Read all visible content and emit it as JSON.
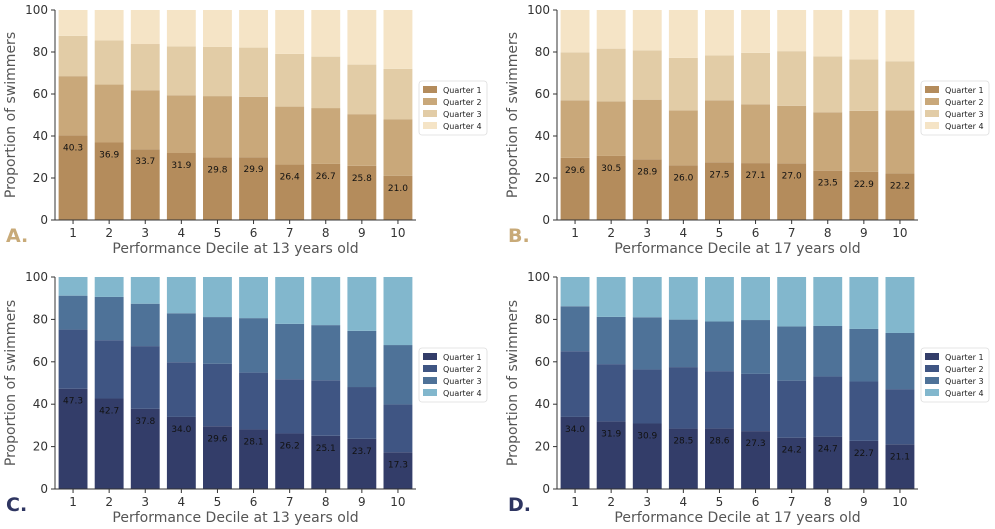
{
  "figure": {
    "colors": {
      "tan": [
        "#b48c5c",
        "#c9a87a",
        "#e2cca6",
        "#f5e4c6"
      ],
      "blue": [
        "#333d69",
        "#3f5583",
        "#4e7298",
        "#82b7cd"
      ],
      "axis": "#333333",
      "tick_text": "#333333",
      "label_text": "#555555",
      "tag_tan": "#c8aa78",
      "tag_blue": "#2e3561"
    }
  },
  "chart_data": [
    {
      "type": "bar",
      "stacked": true,
      "panel": "A.",
      "palette": "tan",
      "title": "",
      "xlabel": "Performance Decile at 13 years old",
      "ylabel": "Proportion of swimmers",
      "ylim": [
        0,
        100
      ],
      "yticks": [
        "0",
        "20",
        "40",
        "60",
        "80",
        "100"
      ],
      "categories": [
        "1",
        "2",
        "3",
        "4",
        "5",
        "6",
        "7",
        "8",
        "9",
        "10"
      ],
      "legend_position": "center-right",
      "series": [
        {
          "name": "Quarter 1",
          "values": [
            40.3,
            36.9,
            33.7,
            31.9,
            29.8,
            29.9,
            26.4,
            26.7,
            25.8,
            21.0
          ]
        },
        {
          "name": "Quarter 2",
          "values": [
            28.2,
            27.6,
            28.1,
            27.5,
            29.2,
            28.8,
            27.6,
            26.6,
            24.6,
            27.0
          ]
        },
        {
          "name": "Quarter 3",
          "values": [
            19.2,
            21.0,
            22.0,
            23.3,
            23.4,
            23.4,
            25.1,
            24.5,
            23.6,
            24.0
          ]
        },
        {
          "name": "Quarter 4",
          "values": [
            12.3,
            14.5,
            16.2,
            17.3,
            17.6,
            17.9,
            20.9,
            22.2,
            26.0,
            28.0
          ]
        }
      ],
      "data_labels": [
        "40.3",
        "36.9",
        "33.7",
        "31.9",
        "29.8",
        "29.9",
        "26.4",
        "26.7",
        "25.8",
        "21.0"
      ]
    },
    {
      "type": "bar",
      "stacked": true,
      "panel": "B.",
      "palette": "tan",
      "title": "",
      "xlabel": "Performance Decile at 17 years old",
      "ylabel": "Proportion of swimmers",
      "ylim": [
        0,
        100
      ],
      "yticks": [
        "0",
        "20",
        "40",
        "60",
        "80",
        "100"
      ],
      "categories": [
        "1",
        "2",
        "3",
        "4",
        "5",
        "6",
        "7",
        "8",
        "9",
        "10"
      ],
      "legend_position": "center-right",
      "series": [
        {
          "name": "Quarter 1",
          "values": [
            29.6,
            30.5,
            28.9,
            26.0,
            27.5,
            27.1,
            27.0,
            23.5,
            22.9,
            22.2
          ]
        },
        {
          "name": "Quarter 2",
          "values": [
            27.4,
            26.0,
            28.4,
            26.2,
            29.5,
            28.0,
            27.4,
            27.8,
            29.1,
            30.0
          ]
        },
        {
          "name": "Quarter 3",
          "values": [
            22.8,
            25.1,
            23.5,
            25.0,
            21.4,
            24.5,
            26.0,
            26.6,
            24.5,
            23.4
          ]
        },
        {
          "name": "Quarter 4",
          "values": [
            20.2,
            18.4,
            19.2,
            22.8,
            21.6,
            20.4,
            19.6,
            22.1,
            23.5,
            24.4
          ]
        }
      ],
      "data_labels": [
        "29.6",
        "30.5",
        "28.9",
        "26.0",
        "27.5",
        "27.1",
        "27.0",
        "23.5",
        "22.9",
        "22.2"
      ]
    },
    {
      "type": "bar",
      "stacked": true,
      "panel": "C.",
      "palette": "blue",
      "title": "",
      "xlabel": "Performance Decile at 13 years old",
      "ylabel": "Proportion of swimmers",
      "ylim": [
        0,
        100
      ],
      "yticks": [
        "0",
        "20",
        "40",
        "60",
        "80",
        "100"
      ],
      "categories": [
        "1",
        "2",
        "3",
        "4",
        "5",
        "6",
        "7",
        "8",
        "9",
        "10"
      ],
      "legend_position": "center-right",
      "series": [
        {
          "name": "Quarter 1",
          "values": [
            47.3,
            42.7,
            37.8,
            34.0,
            29.6,
            28.1,
            26.2,
            25.1,
            23.7,
            17.3
          ]
        },
        {
          "name": "Quarter 2",
          "values": [
            27.9,
            27.5,
            29.6,
            25.8,
            29.5,
            26.8,
            25.6,
            26.2,
            24.4,
            22.6
          ]
        },
        {
          "name": "Quarter 3",
          "values": [
            16.0,
            20.4,
            20.0,
            23.1,
            22.0,
            25.7,
            26.1,
            26.0,
            26.5,
            28.0
          ]
        },
        {
          "name": "Quarter 4",
          "values": [
            8.8,
            9.4,
            12.6,
            17.1,
            18.9,
            19.4,
            22.1,
            22.7,
            25.4,
            32.1
          ]
        }
      ],
      "data_labels": [
        "47.3",
        "42.7",
        "37.8",
        "34.0",
        "29.6",
        "28.1",
        "26.2",
        "25.1",
        "23.7",
        "17.3"
      ]
    },
    {
      "type": "bar",
      "stacked": true,
      "panel": "D.",
      "palette": "blue",
      "title": "",
      "xlabel": "Performance Decile at 17 years old",
      "ylabel": "Proportion of swimmers",
      "ylim": [
        0,
        100
      ],
      "yticks": [
        "0",
        "20",
        "40",
        "60",
        "80",
        "100"
      ],
      "categories": [
        "1",
        "2",
        "3",
        "4",
        "5",
        "6",
        "7",
        "8",
        "9",
        "10"
      ],
      "legend_position": "center-right",
      "series": [
        {
          "name": "Quarter 1",
          "values": [
            34.0,
            31.9,
            30.9,
            28.5,
            28.6,
            27.3,
            24.2,
            24.7,
            22.7,
            21.1
          ]
        },
        {
          "name": "Quarter 2",
          "values": [
            31.0,
            27.0,
            25.5,
            29.0,
            27.0,
            27.0,
            26.9,
            28.4,
            28.0,
            26.0
          ]
        },
        {
          "name": "Quarter 3",
          "values": [
            21.2,
            22.3,
            24.6,
            22.4,
            23.4,
            25.4,
            25.6,
            23.8,
            24.8,
            26.5
          ]
        },
        {
          "name": "Quarter 4",
          "values": [
            13.8,
            18.8,
            19.0,
            20.1,
            21.0,
            20.3,
            23.3,
            23.1,
            24.5,
            26.4
          ]
        }
      ],
      "data_labels": [
        "34.0",
        "31.9",
        "30.9",
        "28.5",
        "28.6",
        "27.3",
        "24.2",
        "24.7",
        "22.7",
        "21.1"
      ]
    }
  ]
}
